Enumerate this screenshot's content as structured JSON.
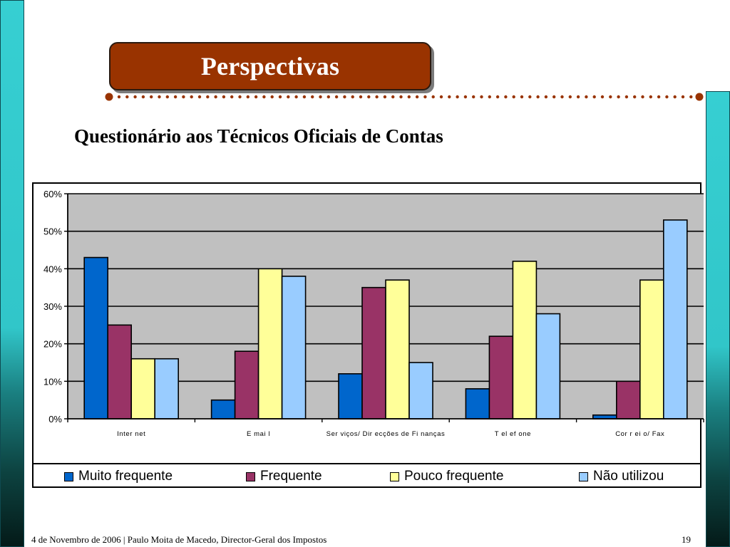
{
  "slide": {
    "title": "Perspectivas",
    "subtitle": "Questionário aos Técnicos Oficiais de Contas",
    "footer_text": "4 de Novembro de 2006 | Paulo Moita de Macedo, Director-Geral dos Impostos",
    "page_number": "19",
    "colors": {
      "title_box": "#993300",
      "accent_bar": "#36cfd2",
      "dots": "#993300",
      "plot_background": "#c0c0c0"
    }
  },
  "chart_data": {
    "type": "bar",
    "title": "Questionário aos Técnicos Oficiais de Contas",
    "xlabel": "",
    "ylabel": "",
    "categories": [
      "Internet",
      "Email",
      "Serviços/ Direcções de Finanças",
      "Telefone",
      "Correio/ Fax"
    ],
    "category_labels_display": [
      "Inter net",
      "E mai l",
      "Ser viços/ Dir ecções de Fi nanças",
      "T el ef one",
      "Cor r ei o/ Fax"
    ],
    "series": [
      {
        "name": "Muito frequente",
        "color": "#0066cc",
        "values": [
          43,
          5,
          12,
          8,
          1
        ]
      },
      {
        "name": "Frequente",
        "color": "#993366",
        "values": [
          25,
          18,
          35,
          22,
          10
        ]
      },
      {
        "name": "Pouco frequente",
        "color": "#ffff99",
        "values": [
          16,
          40,
          37,
          42,
          37
        ]
      },
      {
        "name": "Não utilizou",
        "color": "#99ccff",
        "values": [
          16,
          38,
          15,
          28,
          53
        ]
      }
    ],
    "ylim": [
      0,
      60
    ],
    "yticks": [
      0,
      10,
      20,
      30,
      40,
      50,
      60
    ],
    "ytick_labels": [
      "0%",
      "10%",
      "20%",
      "30%",
      "40%",
      "50%",
      "60%"
    ],
    "unit": "%",
    "grid": true,
    "legend_position": "bottom"
  }
}
